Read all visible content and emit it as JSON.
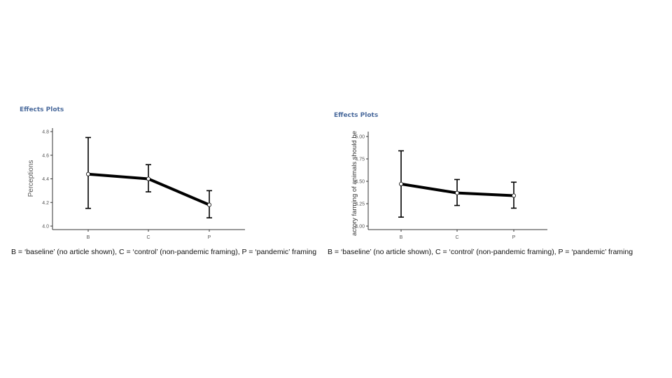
{
  "chart_data": [
    {
      "type": "line",
      "title": "Effects Plots",
      "xlabel": "",
      "ylabel": "Perceptions",
      "categories": [
        "B",
        "C",
        "P"
      ],
      "values": [
        4.44,
        4.4,
        4.18
      ],
      "error_low": [
        4.15,
        4.29,
        4.07
      ],
      "error_high": [
        4.75,
        4.52,
        4.3
      ],
      "yticks": [
        "4.0",
        "4.2",
        "4.4",
        "4.6",
        "4.8"
      ],
      "ylim": [
        4.0,
        4.8
      ],
      "grid": false,
      "caption": "B = ‘baseline’ (no article shown), C = ‘control’ (non-pandemic framing), P = ‘pandemic’ framing"
    },
    {
      "type": "line",
      "title": "Effects Plots",
      "xlabel": "",
      "ylabel": "actory farming of animals should be",
      "categories": [
        "B",
        "C",
        "P"
      ],
      "values": [
        4.47,
        4.37,
        4.34
      ],
      "error_low": [
        4.1,
        4.23,
        4.2
      ],
      "error_high": [
        4.84,
        4.52,
        4.49
      ],
      "yticks": [
        "4.00",
        "4.25",
        "4.50",
        "4.75",
        "5.00"
      ],
      "ylim": [
        4.0,
        5.0
      ],
      "grid": false,
      "caption": "B = ‘baseline’ (no article shown), C = ‘control’ (non-pandemic framing), P = ‘pandemic’ framing"
    }
  ]
}
